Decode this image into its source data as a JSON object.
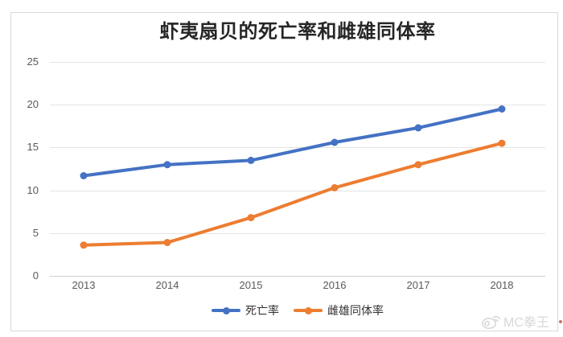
{
  "chart_data": {
    "type": "line",
    "title": "虾夷扇贝的死亡率和雌雄同体率",
    "categories": [
      "2013",
      "2014",
      "2015",
      "2016",
      "2017",
      "2018"
    ],
    "series": [
      {
        "name": "死亡率",
        "color": "#4472C4",
        "values": [
          11.7,
          13.0,
          13.5,
          15.6,
          17.3,
          19.5
        ]
      },
      {
        "name": "雌雄同体率",
        "color": "#ED7D31",
        "values": [
          3.6,
          3.9,
          6.8,
          10.3,
          13.0,
          15.5
        ]
      }
    ],
    "ylim": [
      0,
      25
    ],
    "yticks": [
      "0",
      "5",
      "10",
      "15",
      "20",
      "25"
    ],
    "grid": true,
    "legend_position": "bottom-center",
    "line_width": 4,
    "marker": "circle"
  },
  "watermark": {
    "text": "MC拳王",
    "icon": "weibo-icon"
  }
}
